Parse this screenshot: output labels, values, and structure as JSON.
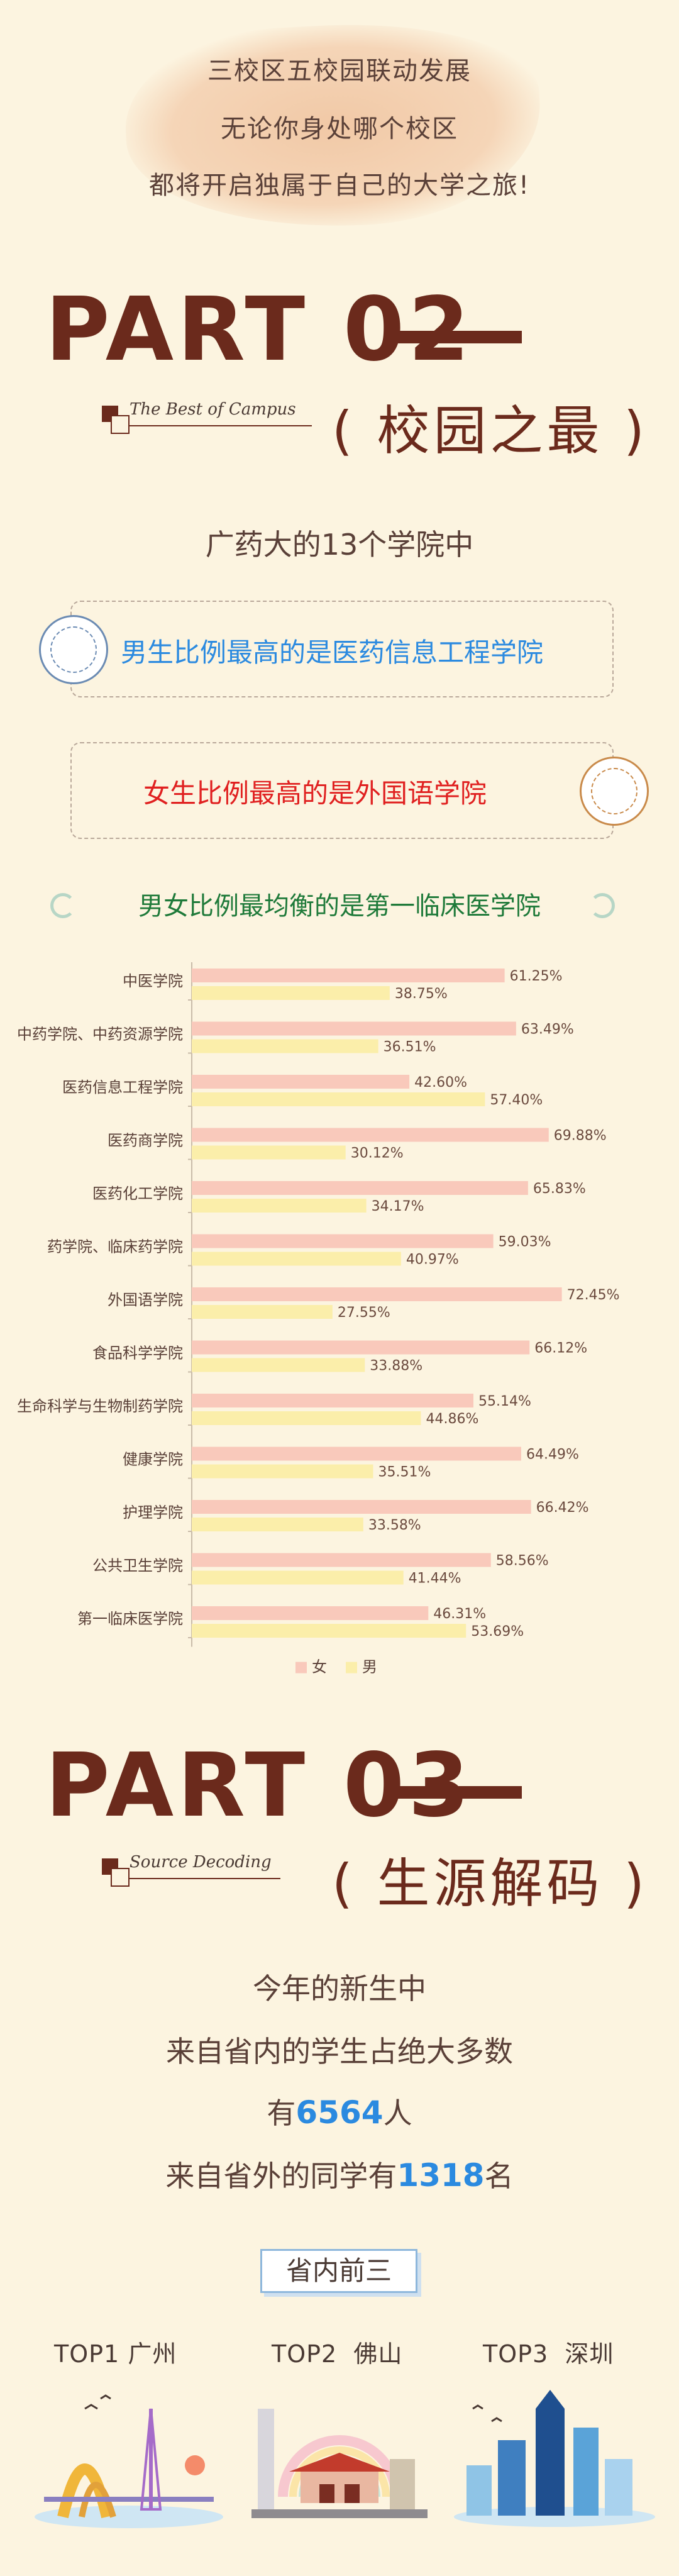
{
  "intro": {
    "lines": [
      "三校区五校园联动发展",
      "无论你身处哪个校区",
      "都将开启独属于自己的大学之旅!"
    ]
  },
  "part02": {
    "title": "PART 02",
    "subtitle_en": "The Best of Campus",
    "subtitle_cn": "( 校园之最 )",
    "lead": "广药大的13个学院中",
    "box1": "男生比例最高的是医药信息工程学院",
    "box2": "女生比例最高的是外国语学院",
    "balanced": "男女比例最均衡的是第一临床医学院"
  },
  "chart_data": {
    "type": "bar",
    "orientation": "horizontal",
    "categories": [
      "中医学院",
      "中药学院、中药资源学院",
      "医药信息工程学院",
      "医药商学院",
      "医药化工学院",
      "药学院、临床药学院",
      "外国语学院",
      "食品科学学院",
      "生命科学与生物制药学院",
      "健康学院",
      "护理学院",
      "公共卫生学院",
      "第一临床医学院"
    ],
    "series": [
      {
        "name": "女",
        "color": "#f9c9bb",
        "values": [
          61.25,
          63.49,
          42.6,
          69.88,
          65.83,
          59.03,
          72.45,
          66.12,
          55.14,
          64.49,
          66.42,
          58.56,
          46.31
        ]
      },
      {
        "name": "男",
        "color": "#fbeeaa",
        "values": [
          38.75,
          36.51,
          57.4,
          30.12,
          34.17,
          40.97,
          27.55,
          33.88,
          44.86,
          35.51,
          33.58,
          41.44,
          53.69
        ]
      }
    ],
    "value_labels": {
      "女": [
        "61.25%",
        "63.49%",
        "42.60%",
        "69.88%",
        "65.83%",
        "59.03%",
        "72.45%",
        "66.12%",
        "55.14%",
        "64.49%",
        "66.42%",
        "58.56%",
        "46.31%"
      ],
      "男": [
        "38.75%",
        "36.51%",
        "57.40%",
        "30.12%",
        "34.17%",
        "40.97%",
        "27.55%",
        "33.88%",
        "44.86%",
        "35.51%",
        "33.58%",
        "41.44%",
        "53.69%"
      ]
    },
    "xlim": [
      0,
      80
    ],
    "legend": "bottom-center",
    "grid": false
  },
  "part03": {
    "title": "PART 03",
    "subtitle_en": "Source Decoding",
    "subtitle_cn": "( 生源解码 )",
    "line1": "今年的新生中",
    "line2": "来自省内的学生占绝大多数",
    "line3_pre": "有",
    "line3_num": "6564",
    "line3_post": "人",
    "line4_pre": "来自省外的同学有",
    "line4_num": "1318",
    "line4_post": "名",
    "tag": "省内前三",
    "cities": [
      {
        "rank": "TOP1",
        "name": "广州"
      },
      {
        "rank": "TOP2",
        "name": "佛山"
      },
      {
        "rank": "TOP3",
        "name": "深圳"
      }
    ]
  },
  "colors": {
    "background": "#fcf4e0",
    "brown": "#6b2a1c",
    "blue": "#2b8ae0",
    "red": "#e02020",
    "green": "#1f7a3a"
  }
}
